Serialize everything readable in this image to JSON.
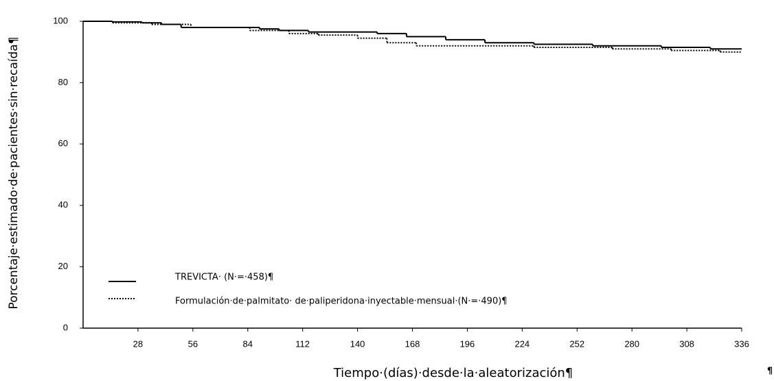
{
  "chart_data": {
    "type": "step",
    "y_label": "Porcentaje·estimado·de·pacientes·sin·recaída¶",
    "x_label": "Tiempo·(días)·desde·la·aleatorización¶",
    "pilcrow": "¶",
    "xlim": [
      0,
      336
    ],
    "ylim": [
      0,
      100
    ],
    "xticks": [
      28,
      56,
      84,
      112,
      140,
      168,
      196,
      224,
      252,
      280,
      308,
      336
    ],
    "yticks": [
      0,
      20,
      40,
      60,
      80,
      100
    ],
    "grid": false,
    "legend": "lower left",
    "series": [
      {
        "name": "TREVICTA· (N·=·458)¶",
        "color": "#000000",
        "style": "solid",
        "x": [
          0,
          15,
          30,
          40,
          50,
          90,
          100,
          115,
          150,
          165,
          185,
          205,
          230,
          260,
          295,
          320
        ],
        "values": [
          100,
          99.8,
          99.5,
          99,
          98,
          97.5,
          97,
          96.5,
          96,
          95,
          94,
          93,
          92.5,
          92,
          91.5,
          91
        ]
      },
      {
        "name": "Formulación·de·palmitato· de·paliperidona·inyectable·mensual·(N·=·490)¶",
        "color": "#000000",
        "style": "dotted",
        "x": [
          0,
          15,
          35,
          55,
          85,
          105,
          120,
          140,
          155,
          170,
          230,
          270,
          300,
          325
        ],
        "values": [
          100,
          99.5,
          99,
          98,
          97,
          96,
          95.5,
          94.5,
          93,
          92,
          91.5,
          91,
          90.5,
          90
        ]
      }
    ]
  }
}
